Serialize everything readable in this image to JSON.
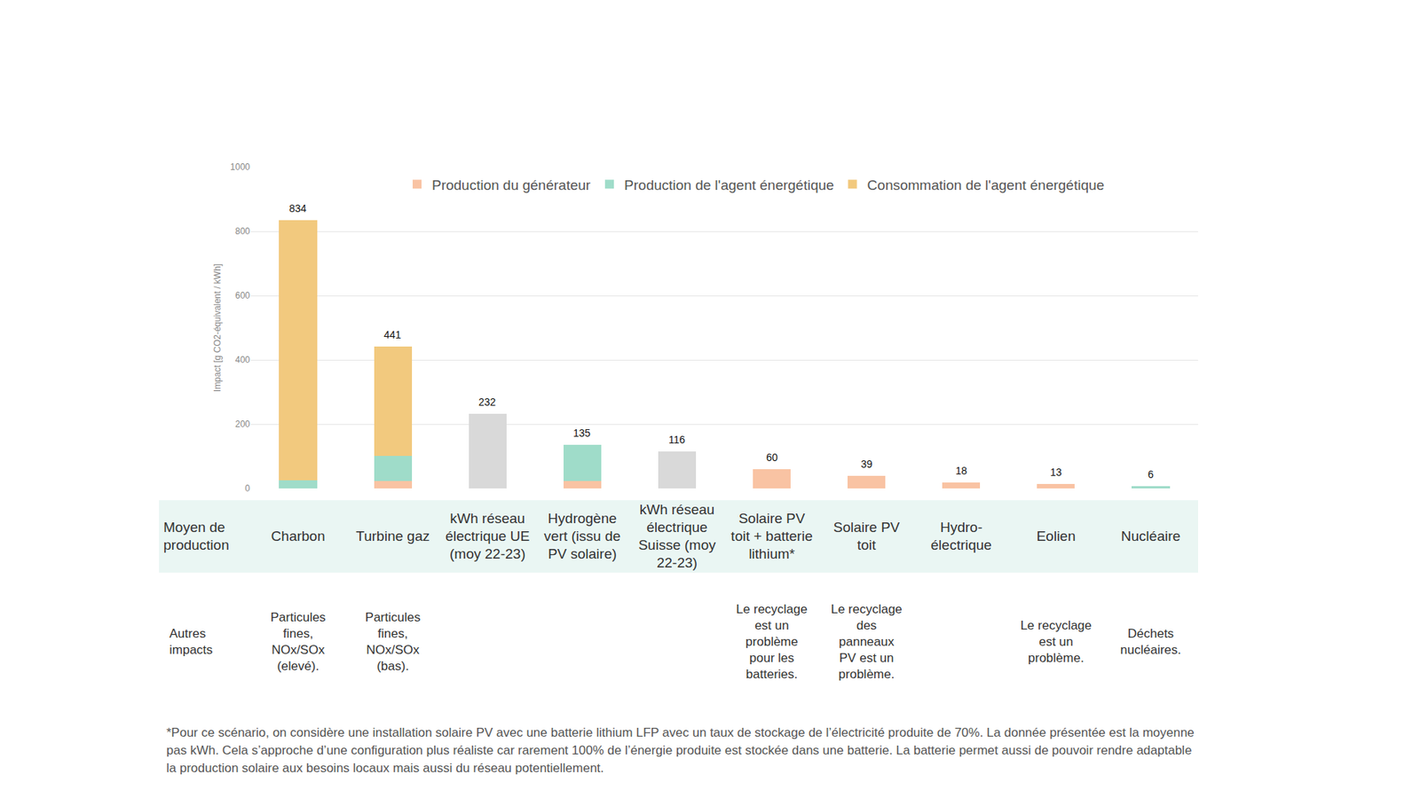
{
  "chart_data": {
    "type": "bar",
    "stacked": true,
    "y_label": "Impact [g CO2-équivalent / kWh]",
    "categories": [
      "Charbon",
      "Turbine gaz",
      "kWh réseau électrique UE (moy 22-23)",
      "Hydrogène vert (issu de PV solaire)",
      "kWh réseau électrique Suisse (moy 22-23)",
      "Solaire PV toit + batterie lithium*",
      "Solaire PV toit",
      "Hydro-électrique",
      "Eolien",
      "Nucléaire"
    ],
    "series": [
      {
        "name": "Production du générateur",
        "color": "#f9c3a3",
        "values": [
          0,
          22,
          null,
          22,
          null,
          60,
          39,
          18,
          13,
          0
        ]
      },
      {
        "name": "Production de l'agent énergétique",
        "color": "#9fdcc9",
        "values": [
          25,
          80,
          null,
          113,
          null,
          0,
          0,
          0,
          0,
          6
        ]
      },
      {
        "name": "Consommation de l'agent énergétique",
        "color": "#f2c97e",
        "values": [
          809,
          339,
          null,
          0,
          null,
          0,
          0,
          0,
          0,
          0
        ]
      },
      {
        "name": null,
        "color": "#d9d9d9",
        "values": [
          null,
          null,
          232,
          null,
          116,
          null,
          null,
          null,
          null,
          null
        ]
      }
    ],
    "totals": [
      834,
      441,
      232,
      135,
      116,
      60,
      39,
      18,
      13,
      6
    ],
    "ylim": [
      0,
      1000
    ],
    "yticks": [
      0,
      200,
      400,
      600,
      800,
      1000
    ],
    "grid": true,
    "legend": "top",
    "tick_labels": "y"
  },
  "table": {
    "row_headers": [
      "Moyen de production",
      "Autres impacts"
    ],
    "other_impacts": [
      "Particules fines, NOx/SOx (elevé).",
      "Particules fines, NOx/SOx (bas).",
      null,
      null,
      null,
      "Le recyclage est un problème pour les batteries.",
      "Le recyclage des panneaux PV est un problème.",
      null,
      "Le recyclage est un problème.",
      "Déchets nucléaires."
    ]
  },
  "footnote": "*Pour ce scénario, on considère une installation solaire PV avec une batterie lithium LFP avec un taux de stockage de l’électricité produite de 70%. La donnée présentée est la moyenne pas kWh. Cela s’approche d’une configuration plus réaliste car rarement 100% de l’énergie produite est stockée dans une batterie. La batterie permet aussi de pouvoir rendre adaptable la production solaire aux besoins locaux mais aussi du réseau potentiellement."
}
